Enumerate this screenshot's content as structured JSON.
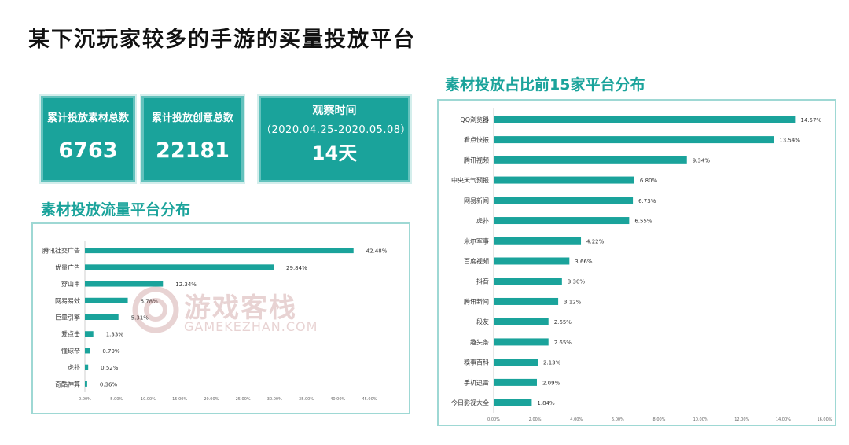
{
  "page": {
    "title": "某下沉玩家较多的手游的买量投放平台"
  },
  "stats": {
    "materials": {
      "label": "累计投放素材总数",
      "value": "6763"
    },
    "creatives": {
      "label": "累计投放创意总数",
      "value": "22181"
    },
    "observation": {
      "label": "观察时间",
      "range": "（2020.04.25-2020.05.08）",
      "value": "14天"
    }
  },
  "watermark": {
    "cn": "游戏客栈",
    "en": "GAMEKEZHAN.COM"
  },
  "colors": {
    "accent": "#1aa39b",
    "bar": "#1aa39b"
  },
  "chart_data": [
    {
      "id": "traffic",
      "type": "bar",
      "orientation": "horizontal",
      "title": "素材投放流量平台分布",
      "categories": [
        "腾讯社交广告",
        "优量广告",
        "穿山甲",
        "网易易效",
        "巨量引擎",
        "爱点击",
        "懂球帝",
        "虎扑",
        "奇酷神算"
      ],
      "values": [
        42.48,
        29.84,
        12.34,
        6.78,
        5.31,
        1.33,
        0.79,
        0.52,
        0.36
      ],
      "labels": [
        "42.48%",
        "29.84%",
        "12.34%",
        "6.78%",
        "5.31%",
        "1.33%",
        "0.79%",
        "0.52%",
        "0.36%"
      ],
      "xlim": [
        0,
        45
      ],
      "xticks": [
        "0.00%",
        "5.00%",
        "10.00%",
        "15.00%",
        "20.00%",
        "25.00%",
        "30.00%",
        "35.00%",
        "40.00%",
        "45.00%"
      ],
      "grid": false
    },
    {
      "id": "top15",
      "type": "bar",
      "orientation": "horizontal",
      "title": "素材投放占比前15家平台分布",
      "categories": [
        "QQ浏览器",
        "看点快报",
        "腾讯视频",
        "中央天气预报",
        "网易新闻",
        "虎扑",
        "米尔军事",
        "百度视频",
        "抖音",
        "腾讯新闻",
        "段友",
        "趣头条",
        "糗事百科",
        "手机迅雷",
        "今日影视大全"
      ],
      "values": [
        14.57,
        13.54,
        9.34,
        6.8,
        6.73,
        6.55,
        4.22,
        3.66,
        3.3,
        3.12,
        2.65,
        2.65,
        2.13,
        2.09,
        1.84
      ],
      "labels": [
        "14.57%",
        "13.54%",
        "9.34%",
        "6.80%",
        "6.73%",
        "6.55%",
        "4.22%",
        "3.66%",
        "3.30%",
        "3.12%",
        "2.65%",
        "2.65%",
        "2.13%",
        "2.09%",
        "1.84%"
      ],
      "xlim": [
        0,
        16
      ],
      "xticks": [
        "0.00%",
        "2.00%",
        "4.00%",
        "6.00%",
        "8.00%",
        "10.00%",
        "12.00%",
        "14.00%",
        "16.00%"
      ],
      "grid": false
    }
  ]
}
